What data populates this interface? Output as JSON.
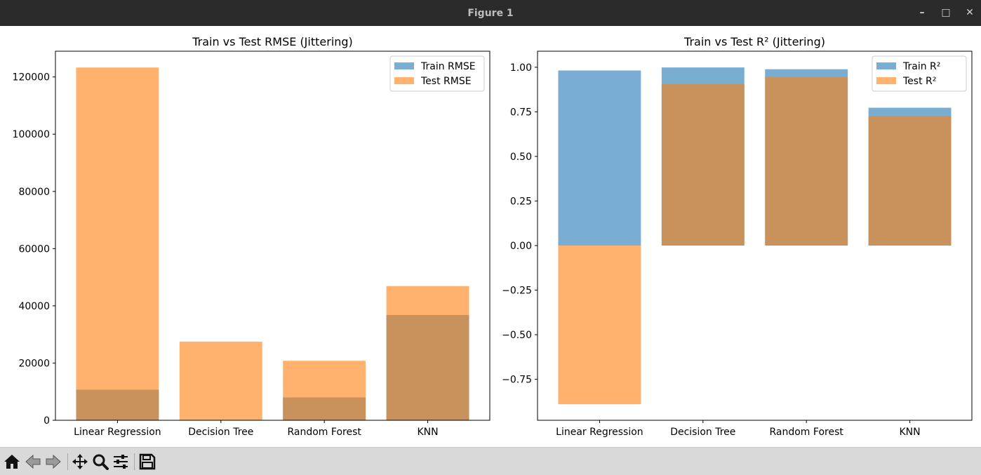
{
  "window": {
    "title": "Figure 1",
    "controls": {
      "minimize": "–",
      "maximize": "□",
      "close": "✕"
    }
  },
  "toolbar": {
    "items": [
      {
        "name": "home-button",
        "icon": "home-icon"
      },
      {
        "name": "back-button",
        "icon": "back-arrow-icon"
      },
      {
        "name": "forward-button",
        "icon": "forward-arrow-icon"
      },
      {
        "name": "pan-button",
        "icon": "pan-icon"
      },
      {
        "name": "zoom-button",
        "icon": "zoom-icon"
      },
      {
        "name": "configure-subplots-button",
        "icon": "sliders-icon"
      },
      {
        "name": "save-button",
        "icon": "save-icon"
      }
    ]
  },
  "colors": {
    "train": "#1f77b4",
    "test": "#ff7f0e",
    "train_alpha": 0.6,
    "test_alpha": 0.6
  },
  "chart_data": [
    {
      "type": "bar",
      "title": "Train vs Test RMSE (Jittering)",
      "categories": [
        "Linear Regression",
        "Decision Tree",
        "Random Forest",
        "KNN"
      ],
      "series": [
        {
          "name": "Train RMSE",
          "values": [
            10700,
            0,
            8000,
            36800
          ]
        },
        {
          "name": "Test RMSE",
          "values": [
            123300,
            27500,
            20800,
            46900
          ]
        }
      ],
      "ylim": [
        0,
        129000
      ],
      "yticks": [
        0,
        20000,
        40000,
        60000,
        80000,
        100000,
        120000
      ],
      "ytick_labels": [
        "0",
        "20000",
        "40000",
        "60000",
        "80000",
        "100000",
        "120000"
      ],
      "legend": "top-right",
      "grid": false
    },
    {
      "type": "bar",
      "title": "Train vs Test R² (Jittering)",
      "categories": [
        "Linear Regression",
        "Decision Tree",
        "Random Forest",
        "KNN"
      ],
      "series": [
        {
          "name": "Train R²",
          "values": [
            0.982,
            0.999,
            0.989,
            0.773
          ]
        },
        {
          "name": "Test R²",
          "values": [
            -0.89,
            0.905,
            0.945,
            0.727
          ]
        }
      ],
      "ylim": [
        -0.98,
        1.09
      ],
      "yticks": [
        -0.75,
        -0.5,
        -0.25,
        0.0,
        0.25,
        0.5,
        0.75,
        1.0
      ],
      "ytick_labels": [
        "−0.75",
        "−0.50",
        "−0.25",
        "0.00",
        "0.25",
        "0.50",
        "0.75",
        "1.00"
      ],
      "legend": "top-right",
      "grid": false
    }
  ]
}
